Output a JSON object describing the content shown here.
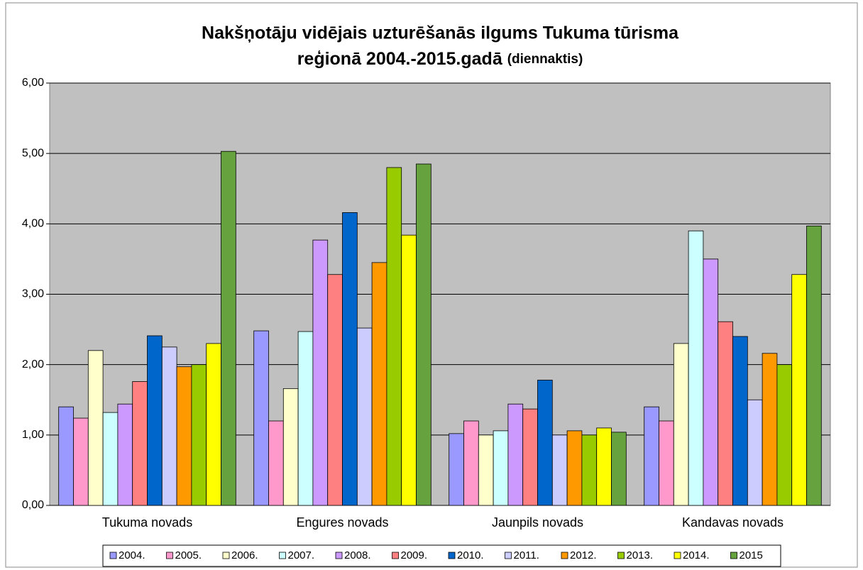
{
  "chart_data": {
    "type": "bar",
    "title": [
      "Nakšņotāju vidējais uzturēšanās ilgums Tukuma tūrisma",
      "reģionā 2004.-2015.gadā"
    ],
    "subtitle": "(diennaktis)",
    "categories": [
      "Tukuma novads",
      "Engures novads",
      "Jaunpils novads",
      "Kandavas novads"
    ],
    "series": [
      {
        "name": "2004.",
        "color": "#9999ff",
        "values": [
          1.4,
          2.48,
          1.02,
          1.4
        ]
      },
      {
        "name": "2005.",
        "color": "#ff99cc",
        "values": [
          1.24,
          1.2,
          1.2,
          1.2
        ]
      },
      {
        "name": "2006.",
        "color": "#ffffcc",
        "values": [
          2.2,
          1.66,
          1.0,
          2.3
        ]
      },
      {
        "name": "2007.",
        "color": "#ccffff",
        "values": [
          1.32,
          2.47,
          1.06,
          3.9
        ]
      },
      {
        "name": "2008.",
        "color": "#cc99ff",
        "values": [
          1.44,
          3.77,
          1.44,
          3.5
        ]
      },
      {
        "name": "2009.",
        "color": "#ff8080",
        "values": [
          1.76,
          3.28,
          1.37,
          2.61
        ]
      },
      {
        "name": "2010.",
        "color": "#0066cc",
        "values": [
          2.41,
          4.16,
          1.78,
          2.4
        ]
      },
      {
        "name": "2011.",
        "color": "#ccccff",
        "values": [
          2.25,
          2.52,
          1.0,
          1.5
        ]
      },
      {
        "name": "2012.",
        "color": "#ff9900",
        "values": [
          1.97,
          3.45,
          1.06,
          2.16
        ]
      },
      {
        "name": "2013.",
        "color": "#99cc00",
        "values": [
          2.0,
          4.8,
          1.0,
          2.0
        ]
      },
      {
        "name": "2014.",
        "color": "#ffff00",
        "values": [
          2.3,
          3.84,
          1.1,
          3.28
        ]
      },
      {
        "name": "2015",
        "color": "#66a33f",
        "values": [
          5.03,
          4.85,
          1.04,
          3.97
        ]
      }
    ],
    "ylim": [
      0,
      6
    ],
    "yticks": [
      {
        "value": 0,
        "label": "0,00"
      },
      {
        "value": 1,
        "label": "1,00"
      },
      {
        "value": 2,
        "label": "2,00"
      },
      {
        "value": 3,
        "label": "3,00"
      },
      {
        "value": 4,
        "label": "4,00"
      },
      {
        "value": 5,
        "label": "5,00"
      },
      {
        "value": 6,
        "label": "6,00"
      }
    ],
    "grid": true,
    "legend": "bottom"
  }
}
